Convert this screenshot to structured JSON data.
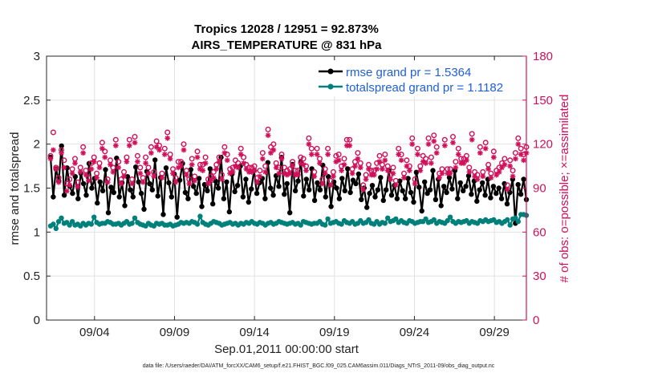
{
  "title": {
    "line1": "Tropics 12028 / 12951 = 92.873%",
    "line2": "AIRS_TEMPERATURE @ 831 hPa"
  },
  "footnote": "data file: /Users/raeder/DAI/ATM_forcXX/CAM6_setup/f.e21.FHIST_BGC.f09_025.CAM6assim.011/Diags_NTrS_2011-09/obs_diag_output.nc",
  "colors": {
    "rmse": "#000000",
    "spread": "#00807a",
    "obs": "#d0105a",
    "grid": "#e2e2e2",
    "legend_text": "#1f5fd8"
  },
  "chart_data": {
    "type": "line",
    "xlabel": "Sep.01,2011 00:00:00 start",
    "ylabel": "rmse and totalspread",
    "y2label": "# of obs: o=possible; ×=assimilated",
    "xlim": [
      1.0,
      31.0
    ],
    "ylim": [
      0,
      3
    ],
    "y2lim": [
      0,
      180
    ],
    "grid": true,
    "legend_position": "top-right",
    "x_ticks": [
      {
        "value": 4,
        "label": "09/04"
      },
      {
        "value": 9,
        "label": "09/09"
      },
      {
        "value": 14,
        "label": "09/14"
      },
      {
        "value": 19,
        "label": "09/19"
      },
      {
        "value": 24,
        "label": "09/24"
      },
      {
        "value": 29,
        "label": "09/29"
      }
    ],
    "y_ticks": [
      {
        "value": 0,
        "label": "0"
      },
      {
        "value": 0.5,
        "label": "0.5"
      },
      {
        "value": 1,
        "label": "1"
      },
      {
        "value": 1.5,
        "label": "1.5"
      },
      {
        "value": 2,
        "label": "2"
      },
      {
        "value": 2.5,
        "label": "2.5"
      },
      {
        "value": 3,
        "label": "3"
      }
    ],
    "y2_ticks": [
      {
        "value": 0,
        "label": "0"
      },
      {
        "value": 30,
        "label": "30"
      },
      {
        "value": 60,
        "label": "60"
      },
      {
        "value": 90,
        "label": "90"
      },
      {
        "value": 120,
        "label": "120"
      },
      {
        "value": 150,
        "label": "150"
      },
      {
        "value": 180,
        "label": "180"
      }
    ],
    "series": [
      {
        "name": "rmse",
        "legend": "rmse grand pr = 1.5364",
        "axis": "left",
        "style": "line-dot",
        "values": [
          1.85,
          1.4,
          1.72,
          1.58,
          1.98,
          1.42,
          1.73,
          1.52,
          1.44,
          1.63,
          1.38,
          1.67,
          1.55,
          1.42,
          1.78,
          1.5,
          1.61,
          1.33,
          1.57,
          1.47,
          1.71,
          1.22,
          1.51,
          1.45,
          1.84,
          1.4,
          1.56,
          1.3,
          1.63,
          1.48,
          1.4,
          1.74,
          1.57,
          1.44,
          1.26,
          1.69,
          1.55,
          1.48,
          1.82,
          1.41,
          1.62,
          1.2,
          1.73,
          1.56,
          1.4,
          1.66,
          1.17,
          1.59,
          1.78,
          1.45,
          1.38,
          1.71,
          1.52,
          1.44,
          1.61,
          1.29,
          1.54,
          1.47,
          1.72,
          1.32,
          1.58,
          1.5,
          1.85,
          1.38,
          1.57,
          1.23,
          1.66,
          1.46,
          1.53,
          1.75,
          1.4,
          1.6,
          1.34,
          1.49,
          1.7,
          1.44,
          1.56,
          1.61,
          1.38,
          1.79,
          1.5,
          1.42,
          1.64,
          1.52,
          1.85,
          1.43,
          1.55,
          1.22,
          1.77,
          1.47,
          1.58,
          1.8,
          1.41,
          1.6,
          1.48,
          1.72,
          1.36,
          1.56,
          1.48,
          1.76,
          1.4,
          1.63,
          1.29,
          1.57,
          1.5,
          1.38,
          1.61,
          1.47,
          1.72,
          1.45,
          1.59,
          1.55,
          1.66,
          1.37,
          1.5,
          1.28,
          1.44,
          1.53,
          1.4,
          1.48,
          1.62,
          1.36,
          1.48,
          1.7,
          1.42,
          1.53,
          1.38,
          1.58,
          1.47,
          1.38,
          1.61,
          1.45,
          1.34,
          1.68,
          1.51,
          1.24,
          1.57,
          1.44,
          1.48,
          1.7,
          1.37,
          1.6,
          1.3,
          1.52,
          1.45,
          1.62,
          1.49,
          1.7,
          1.38,
          1.56,
          1.47,
          1.52,
          1.64,
          1.43,
          1.58,
          1.35,
          1.48,
          1.56,
          1.42,
          1.6,
          1.39,
          1.52,
          1.44,
          1.5,
          1.38,
          1.55,
          1.32,
          1.45,
          1.6,
          1.1,
          1.54,
          1.43,
          1.6,
          1.37
        ]
      },
      {
        "name": "totalspread",
        "legend": "totalspread grand pr = 1.1182",
        "axis": "left",
        "style": "line-dot",
        "values": [
          1.07,
          1.09,
          1.04,
          1.12,
          1.16,
          1.1,
          1.11,
          1.08,
          1.12,
          1.08,
          1.09,
          1.07,
          1.1,
          1.08,
          1.1,
          1.09,
          1.17,
          1.11,
          1.09,
          1.1,
          1.1,
          1.12,
          1.11,
          1.09,
          1.09,
          1.1,
          1.08,
          1.1,
          1.12,
          1.09,
          1.1,
          1.16,
          1.11,
          1.09,
          1.08,
          1.07,
          1.1,
          1.08,
          1.07,
          1.1,
          1.09,
          1.1,
          1.08,
          1.08,
          1.09,
          1.07,
          1.08,
          1.09,
          1.11,
          1.1,
          1.11,
          1.1,
          1.12,
          1.11,
          1.09,
          1.18,
          1.11,
          1.09,
          1.08,
          1.1,
          1.12,
          1.11,
          1.1,
          1.08,
          1.09,
          1.1,
          1.11,
          1.09,
          1.1,
          1.08,
          1.1,
          1.09,
          1.11,
          1.1,
          1.12,
          1.1,
          1.09,
          1.11,
          1.1,
          1.08,
          1.1,
          1.11,
          1.09,
          1.1,
          1.12,
          1.11,
          1.1,
          1.09,
          1.1,
          1.11,
          1.09,
          1.1,
          1.08,
          1.12,
          1.11,
          1.1,
          1.09,
          1.1,
          1.1,
          1.12,
          1.09,
          1.08,
          1.15,
          1.1,
          1.11,
          1.12,
          1.1,
          1.09,
          1.13,
          1.11,
          1.1,
          1.12,
          1.09,
          1.1,
          1.13,
          1.1,
          1.11,
          1.14,
          1.1,
          1.09,
          1.12,
          1.09,
          1.11,
          1.1,
          1.16,
          1.12,
          1.13,
          1.15,
          1.11,
          1.13,
          1.11,
          1.1,
          1.13,
          1.12,
          1.1,
          1.11,
          1.12,
          1.12,
          1.15,
          1.11,
          1.12,
          1.14,
          1.1,
          1.12,
          1.11,
          1.1,
          1.13,
          1.17,
          1.12,
          1.1,
          1.12,
          1.11,
          1.12,
          1.13,
          1.1,
          1.12,
          1.11,
          1.1,
          1.13,
          1.12,
          1.14,
          1.12,
          1.13,
          1.14,
          1.11,
          1.12,
          1.1,
          1.12,
          1.14,
          1.08,
          1.15,
          1.16,
          1.12,
          1.2,
          1.2,
          1.19
        ]
      },
      {
        "name": "possible",
        "legend": "",
        "axis": "right",
        "style": "circle",
        "values": [
          112,
          128,
          104,
          97,
          116,
          109,
          93,
          96,
          103,
          110,
          94,
          104,
          118,
          102,
          97,
          107,
          111,
          100,
          107,
          121,
          115,
          96,
          109,
          104,
          123,
          108,
          96,
          101,
          111,
          123,
          96,
          125,
          112,
          104,
          97,
          111,
          104,
          118,
          101,
          122,
          119,
          100,
          117,
          128,
          113,
          103,
          97,
          108,
          108,
          120,
          102,
          96,
          110,
          98,
          115,
          106,
          106,
          111,
          96,
          98,
          101,
          106,
          111,
          99,
          118,
          113,
          103,
          104,
          109,
          107,
          117,
          111,
          106,
          104,
          104,
          105,
          97,
          102,
          114,
          105,
          130,
          118,
          120,
          107,
          104,
          113,
          104,
          102,
          103,
          108,
          102,
          102,
          111,
          110,
          105,
          124,
          117,
          101,
          117,
          110,
          96,
          103,
          117,
          95,
          101,
          112,
          113,
          105,
          110,
          123,
          123,
          103,
          108,
          114,
          107,
          92,
          99,
          106,
          102,
          102,
          107,
          112,
          106,
          113,
          105,
          99,
          104,
          95,
          117,
          113,
          100,
          109,
          105,
          124,
          96,
          117,
          105,
          112,
          110,
          124,
          111,
          126,
          118,
          100,
          103,
          123,
          103,
          103,
          125,
          108,
          117,
          110,
          110,
          112,
          104,
          127,
          101,
          99,
          118,
          101,
          121,
          106,
          100,
          115,
          102,
          104,
          107,
          110,
          92,
          109,
          102,
          114,
          124,
          117,
          113,
          118
        ]
      },
      {
        "name": "assimilated",
        "legend": "",
        "axis": "right",
        "style": "asterisk",
        "values": [
          110,
          116,
          103,
          94,
          114,
          104,
          88,
          92,
          100,
          107,
          91,
          101,
          114,
          99,
          95,
          103,
          108,
          97,
          104,
          117,
          111,
          94,
          106,
          101,
          119,
          104,
          93,
          98,
          108,
          119,
          93,
          121,
          108,
          100,
          94,
          107,
          100,
          114,
          98,
          118,
          116,
          97,
          113,
          124,
          110,
          100,
          94,
          104,
          105,
          116,
          99,
          93,
          106,
          95,
          111,
          103,
          102,
          107,
          93,
          95,
          97,
          103,
          108,
          96,
          114,
          109,
          100,
          101,
          105,
          104,
          113,
          107,
          103,
          101,
          101,
          102,
          94,
          98,
          110,
          101,
          126,
          114,
          116,
          104,
          100,
          110,
          100,
          99,
          100,
          105,
          99,
          99,
          107,
          106,
          102,
          120,
          113,
          98,
          113,
          107,
          93,
          100,
          113,
          92,
          98,
          108,
          109,
          102,
          106,
          119,
          119,
          100,
          105,
          110,
          104,
          89,
          96,
          103,
          99,
          99,
          103,
          108,
          103,
          109,
          102,
          96,
          100,
          92,
          113,
          109,
          97,
          105,
          102,
          120,
          93,
          113,
          102,
          108,
          107,
          120,
          107,
          122,
          114,
          97,
          100,
          119,
          100,
          100,
          121,
          104,
          113,
          107,
          107,
          109,
          101,
          123,
          98,
          96,
          114,
          98,
          117,
          103,
          97,
          111,
          99,
          101,
          104,
          106,
          89,
          105,
          98,
          110,
          120,
          113,
          109,
          114
        ]
      }
    ]
  }
}
